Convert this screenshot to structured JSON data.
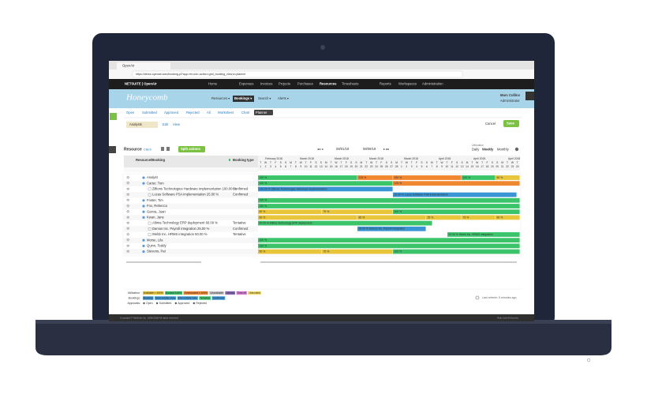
{
  "browser": {
    "tab_title": "OpenAir",
    "url": "https://demo.openair.com/booking.pl?app=rm;uid=;action=grid_booking_view;a=planner"
  },
  "nav": {
    "logo": "NETSUITE | OpenAir",
    "items": [
      "Home",
      "Expenses",
      "Invoices",
      "Projects",
      "Purchases",
      "Resources",
      "Timesheets",
      "Reports",
      "Workspaces",
      "Administration"
    ]
  },
  "header": {
    "logo": "Honeycomb",
    "menus": [
      "Resources ▾",
      "Bookings ▾",
      "Search ▾",
      "Alerts ▾"
    ],
    "user": "Marc Collins",
    "role": "Administrator"
  },
  "tabs": [
    "Open",
    "Submitted",
    "Approved",
    "Rejected",
    "All",
    "Worksheet",
    "Chart",
    "Planner"
  ],
  "view": {
    "name": "Analysts",
    "edit": "Edit",
    "view": "View",
    "cancel": "Cancel",
    "save": "Save"
  },
  "toolbar": {
    "resource": "Resource",
    "client": "Client",
    "split": "Split actions",
    "start": "08/01/18",
    "end": "08/09/19",
    "utilization": "Utilization",
    "daily": "Daily",
    "weekly": "Weekly",
    "monthly": "Monthly"
  },
  "grid": {
    "columns": [
      "Resource/Booking",
      "Booking type"
    ],
    "months": [
      "February 2018",
      "March 2018",
      "March 2018",
      "March 2018",
      "March 2018",
      "April 2018",
      "April 2018",
      "April 2018"
    ],
    "day_letters": [
      "T",
      "W",
      "T",
      "F",
      "S",
      "S",
      "M",
      "T",
      "W",
      "T",
      "F",
      "S",
      "S",
      "M",
      "T",
      "W",
      "T",
      "F",
      "S",
      "S",
      "M",
      "T",
      "W",
      "T",
      "F",
      "S",
      "S",
      "M",
      "T",
      "W",
      "T",
      "F",
      "S",
      "S",
      "M",
      "T",
      "W",
      "T",
      "F",
      "S",
      "S",
      "M",
      "T",
      "W",
      "T",
      "F",
      "S",
      "S",
      "M",
      "T",
      "W",
      "T"
    ],
    "day_numbers": [
      "1",
      "2",
      "3",
      "4",
      "5",
      "6",
      "7",
      "8",
      "9",
      "10",
      "11",
      "12",
      "13",
      "14",
      "15",
      "16",
      "17",
      "18",
      "19",
      "20",
      "21",
      "22",
      "23",
      "24",
      "25",
      "26",
      "27",
      "28",
      "1",
      "2",
      "3",
      "4",
      "5",
      "6",
      "7",
      "8",
      "9",
      "10",
      "11",
      "12",
      "13",
      "14",
      "15",
      "16",
      "17",
      "18",
      "19",
      "20",
      "21",
      "22",
      "23",
      "24"
    ],
    "rows": [
      {
        "name": "Analyst",
        "segments": [
          {
            "label": "100 %",
            "color": "#3cc46a"
          },
          {
            "label": "125 %",
            "color": "#f0862e"
          },
          {
            "label": "150 %",
            "color": "#f0862e"
          },
          {
            "label": "100 %",
            "color": "#3cc46a"
          },
          {
            "label": "50 %",
            "color": "#e8c53a"
          }
        ]
      },
      {
        "name": "Carter, Tom",
        "segments": [
          {
            "label": "100 %",
            "color": "#3cc46a"
          },
          {
            "label": "125 %",
            "color": "#f0862e"
          }
        ]
      },
      {
        "name": "Zillions Technologies Hardware implementation 100.00 %",
        "type": "Confirmed",
        "segments": [
          {
            "label": "100.00 % Zillions Technologies Hardware implementation",
            "color": "#3a95d4"
          }
        ]
      },
      {
        "name": "Lucas Software PSA implementation 25.00 %",
        "type": "Confirmed",
        "segments": [
          {
            "label": "25.00 % Lucas Software PSA implementation",
            "color": "#3a95d4"
          }
        ]
      },
      {
        "name": "Foster, Tim",
        "segments": [
          {
            "label": "100 %",
            "color": "#3cc46a"
          }
        ]
      },
      {
        "name": "Fox, Rebecca",
        "segments": [
          {
            "label": "100 %",
            "color": "#3cc46a"
          }
        ]
      },
      {
        "name": "Garcia, Juan",
        "segments": [
          {
            "label": "50 %",
            "color": "#e8c53a"
          },
          {
            "label": "75 %",
            "color": "#e8c53a"
          },
          {
            "label": "100 %",
            "color": "#3cc46a"
          }
        ]
      },
      {
        "name": "Kwan, Jane",
        "segments": [
          {
            "label": "60 %",
            "color": "#e8c53a"
          },
          {
            "label": "85 %",
            "color": "#e8c53a"
          },
          {
            "label": "25 %",
            "color": "#e8c53a"
          },
          {
            "label": "75 %",
            "color": "#e8c53a"
          },
          {
            "label": "50 %",
            "color": "#e8c53a"
          }
        ]
      },
      {
        "name": "Altima Technology ERP deployment 60.00 %",
        "type": "Tentative",
        "segments": [
          {
            "label": "60.00 % Altima Technology ERP deployment",
            "color": "#3cc46a"
          }
        ]
      },
      {
        "name": "Damus Inc. Payroll integration 25.00 %",
        "type": "Confirmed",
        "segments": [
          {
            "label": "25.00 % Damus Inc. Payroll integration",
            "color": "#3a95d4"
          }
        ]
      },
      {
        "name": "Webb Inc. HRMS integration 50.00 %",
        "type": "Tentative",
        "segments": [
          {
            "label": "50.00 % Webb Inc. HRMS integration",
            "color": "#3cc46a"
          }
        ]
      },
      {
        "name": "Morse, Lila",
        "segments": [
          {
            "label": "100 %",
            "color": "#3cc46a"
          }
        ]
      },
      {
        "name": "Quinn, Teddy",
        "segments": [
          {
            "label": "100 %",
            "color": "#3cc46a"
          }
        ]
      },
      {
        "name": "Stevens, Pat",
        "segments": [
          {
            "label": "50 %",
            "color": "#e8c53a"
          },
          {
            "label": "75 %",
            "color": "#e8c53a"
          },
          {
            "label": "100 %",
            "color": "#3cc46a"
          }
        ]
      }
    ]
  },
  "legend": {
    "utilization": {
      "title": "Utilization:",
      "items": [
        {
          "label": "Available > 100%",
          "color": "#e8c53a"
        },
        {
          "label": "Booked 100%",
          "color": "#3cc46a"
        },
        {
          "label": "Overbooked > 100%",
          "color": "#f0862e"
        },
        {
          "label": "Unavailable",
          "color": "#c8c8c8"
        },
        {
          "label": "Holiday",
          "color": "#8e6bbf"
        },
        {
          "label": "Time off",
          "color": "#d67bd6"
        },
        {
          "label": "Unbooked",
          "color": "#f2dc6a"
        }
      ]
    },
    "bookings": {
      "title": "Bookings:",
      "items": [
        {
          "label": "Booking",
          "color": "#3a95d4"
        },
        {
          "label": "Start outside view",
          "color": "#3a95d4"
        },
        {
          "label": "End outside view",
          "color": "#3a95d4"
        },
        {
          "label": "Tentative",
          "color": "#3cc46a"
        },
        {
          "label": "Confirmed",
          "color": "#3a95d4"
        }
      ]
    },
    "approvals": {
      "title": "Approvals:",
      "items": [
        "Open",
        "Submitted",
        "Approved",
        "Rejected"
      ]
    }
  },
  "refresh": "Last refresh: 5 minutes ago",
  "footer": {
    "left": "Copyright © NetSuite Inc. 1999-2018 All rights reserved",
    "right": "Help Link  All Access"
  }
}
